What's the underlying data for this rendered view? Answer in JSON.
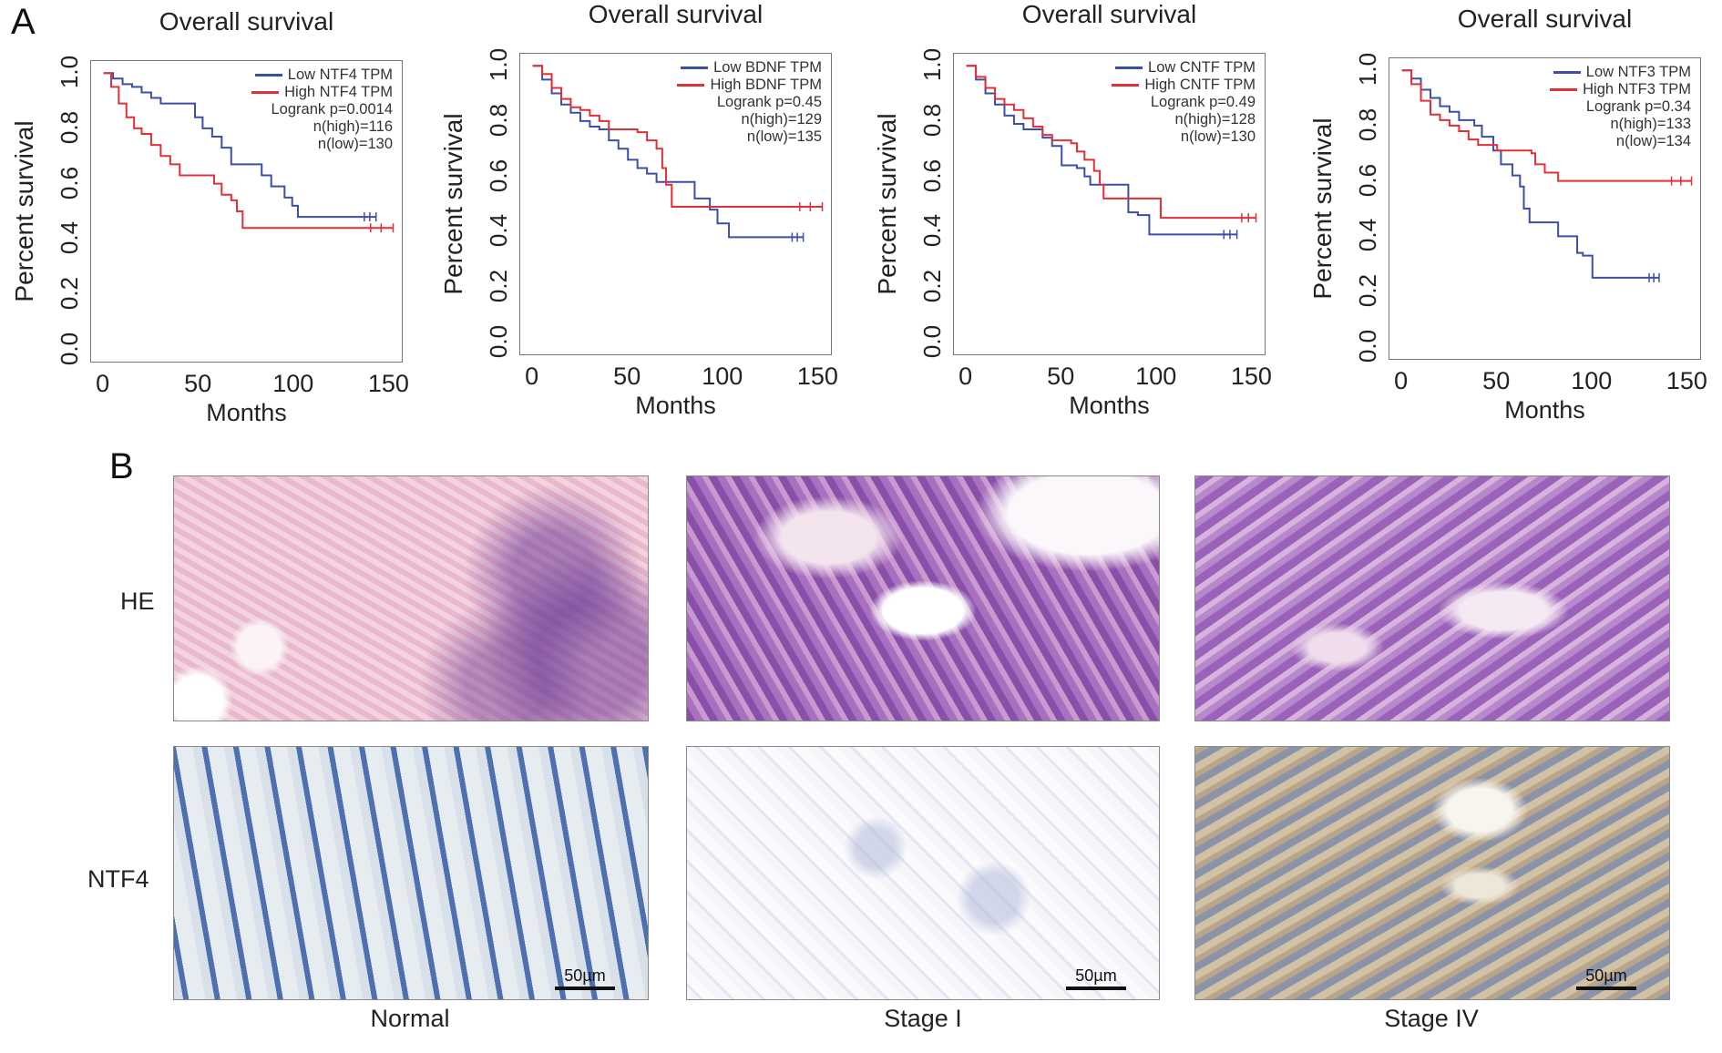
{
  "panels": {
    "a": "A",
    "b": "B"
  },
  "colors": {
    "low": "#3c4fa8",
    "high": "#e03038"
  },
  "chart_data": [
    {
      "type": "line",
      "title": "Overall survival",
      "xlabel": "Months",
      "ylabel": "Percent survival",
      "xlim": [
        0,
        150
      ],
      "ylim": [
        0,
        1.0
      ],
      "xticks": [
        "0",
        "50",
        "100",
        "150"
      ],
      "yticks": [
        "0.0",
        "0.2",
        "0.4",
        "0.6",
        "0.8",
        "1.0"
      ],
      "legend": [
        "Low NTF4 TPM",
        "High NTF4 TPM"
      ],
      "legend_position": "top-right",
      "annotations": [
        "Logrank p=0.0014",
        "n(high)=116",
        "n(low)=130"
      ],
      "series": [
        {
          "name": "Low NTF4 TPM",
          "color": "#3c4fa8",
          "x": [
            0,
            5,
            10,
            15,
            20,
            25,
            30,
            45,
            48,
            52,
            57,
            62,
            67,
            80,
            83,
            88,
            95,
            99,
            102,
            143
          ],
          "y": [
            1,
            0.98,
            0.96,
            0.95,
            0.93,
            0.91,
            0.89,
            0.89,
            0.84,
            0.8,
            0.77,
            0.73,
            0.67,
            0.67,
            0.63,
            0.59,
            0.55,
            0.52,
            0.48,
            0.48
          ]
        },
        {
          "name": "High NTF4 TPM",
          "color": "#e03038",
          "x": [
            0,
            4,
            8,
            12,
            16,
            20,
            25,
            30,
            35,
            40,
            55,
            58,
            62,
            67,
            70,
            73,
            152
          ],
          "y": [
            1,
            0.95,
            0.89,
            0.84,
            0.8,
            0.78,
            0.74,
            0.7,
            0.67,
            0.63,
            0.63,
            0.6,
            0.56,
            0.54,
            0.5,
            0.44,
            0.44
          ]
        }
      ]
    },
    {
      "type": "line",
      "title": "Overall survival",
      "xlabel": "Months",
      "ylabel": "Percent survival",
      "xlim": [
        0,
        150
      ],
      "ylim": [
        0,
        1.0
      ],
      "xticks": [
        "0",
        "50",
        "100",
        "150"
      ],
      "yticks": [
        "0.0",
        "0.2",
        "0.4",
        "0.6",
        "0.8",
        "1.0"
      ],
      "legend": [
        "Low BDNF TPM",
        "High BDNF TPM"
      ],
      "legend_position": "top-right",
      "annotations": [
        "Logrank p=0.45",
        "n(high)=129",
        "n(low)=135"
      ],
      "series": [
        {
          "name": "Low BDNF TPM",
          "color": "#3c4fa8",
          "x": [
            0,
            5,
            10,
            15,
            20,
            25,
            30,
            35,
            40,
            45,
            50,
            55,
            60,
            65,
            82,
            85,
            93,
            97,
            103,
            142
          ],
          "y": [
            1,
            0.95,
            0.9,
            0.86,
            0.83,
            0.8,
            0.78,
            0.77,
            0.73,
            0.7,
            0.66,
            0.63,
            0.61,
            0.58,
            0.58,
            0.52,
            0.48,
            0.43,
            0.38,
            0.38
          ]
        },
        {
          "name": "High BDNF TPM",
          "color": "#e03038",
          "x": [
            0,
            5,
            10,
            15,
            20,
            25,
            30,
            35,
            40,
            55,
            60,
            65,
            68,
            70,
            73,
            152
          ],
          "y": [
            1,
            0.97,
            0.92,
            0.88,
            0.85,
            0.84,
            0.82,
            0.8,
            0.77,
            0.76,
            0.73,
            0.7,
            0.63,
            0.57,
            0.49,
            0.49
          ]
        }
      ]
    },
    {
      "type": "line",
      "title": "Overall survival",
      "xlabel": "Months",
      "ylabel": "Percent survival",
      "xlim": [
        0,
        150
      ],
      "ylim": [
        0,
        1.0
      ],
      "xticks": [
        "0",
        "50",
        "100",
        "150"
      ],
      "yticks": [
        "0.0",
        "0.2",
        "0.4",
        "0.6",
        "0.8",
        "1.0"
      ],
      "legend": [
        "Low CNTF TPM",
        "High CNTF TPM"
      ],
      "legend_position": "top-right",
      "annotations": [
        "Logrank p=0.49",
        "n(high)=128",
        "n(low)=130"
      ],
      "series": [
        {
          "name": "Low CNTF TPM",
          "color": "#3c4fa8",
          "x": [
            0,
            5,
            10,
            15,
            20,
            25,
            30,
            40,
            45,
            50,
            58,
            62,
            65,
            82,
            85,
            90,
            96,
            142
          ],
          "y": [
            1,
            0.95,
            0.9,
            0.86,
            0.82,
            0.79,
            0.77,
            0.74,
            0.71,
            0.64,
            0.63,
            0.6,
            0.57,
            0.57,
            0.47,
            0.46,
            0.39,
            0.39
          ]
        },
        {
          "name": "High CNTF TPM",
          "color": "#e03038",
          "x": [
            0,
            5,
            10,
            15,
            20,
            25,
            30,
            35,
            40,
            45,
            55,
            58,
            62,
            67,
            70,
            72,
            85,
            102,
            152
          ],
          "y": [
            1,
            0.96,
            0.92,
            0.88,
            0.86,
            0.84,
            0.81,
            0.78,
            0.75,
            0.73,
            0.72,
            0.69,
            0.66,
            0.62,
            0.57,
            0.52,
            0.52,
            0.45,
            0.45
          ]
        }
      ]
    },
    {
      "type": "line",
      "title": "Overall survival",
      "xlabel": "Months",
      "ylabel": "Percent survival",
      "xlim": [
        0,
        150
      ],
      "ylim": [
        0,
        1.0
      ],
      "xticks": [
        "0",
        "50",
        "100",
        "150"
      ],
      "yticks": [
        "0.0",
        "0.2",
        "0.4",
        "0.6",
        "0.8",
        "1.0"
      ],
      "legend": [
        "Low NTF3 TPM",
        "High NTF3 TPM"
      ],
      "legend_position": "top-right",
      "annotations": [
        "Logrank p=0.34",
        "n(high)=133",
        "n(low)=134"
      ],
      "series": [
        {
          "name": "Low NTF3 TPM",
          "color": "#3c4fa8",
          "x": [
            0,
            5,
            10,
            15,
            20,
            25,
            30,
            38,
            42,
            48,
            52,
            58,
            62,
            64,
            67,
            80,
            82,
            92,
            95,
            100,
            135
          ],
          "y": [
            1,
            0.97,
            0.93,
            0.9,
            0.87,
            0.85,
            0.82,
            0.8,
            0.76,
            0.71,
            0.66,
            0.62,
            0.58,
            0.5,
            0.45,
            0.45,
            0.4,
            0.34,
            0.33,
            0.25,
            0.25
          ]
        },
        {
          "name": "High NTF3 TPM",
          "color": "#e03038",
          "x": [
            0,
            5,
            10,
            15,
            20,
            25,
            30,
            35,
            40,
            50,
            68,
            70,
            75,
            82,
            152
          ],
          "y": [
            1,
            0.95,
            0.89,
            0.84,
            0.82,
            0.8,
            0.78,
            0.75,
            0.73,
            0.71,
            0.7,
            0.66,
            0.63,
            0.6,
            0.6
          ]
        }
      ]
    }
  ],
  "histology": {
    "row_labels": [
      "HE",
      "NTF4"
    ],
    "column_labels": [
      "Normal",
      "Stage I",
      "Stage IV"
    ],
    "scale_bar": "50µm"
  }
}
